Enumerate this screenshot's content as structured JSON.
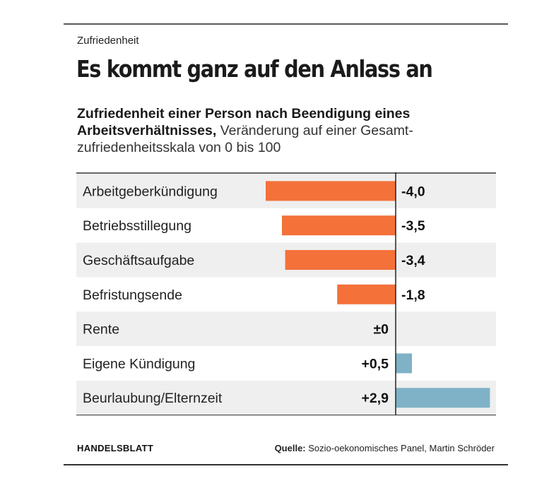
{
  "kicker": "Zufriedenheit",
  "headline": "Es kommt ganz auf den Anlass an",
  "subtitle": {
    "bold": "Zufriedenheit einer Person nach Beendigung eines Arbeitsverhältnisses,",
    "rest": " Veränderung auf einer Gesamt-zufriedenheitsskala von 0 bis 100"
  },
  "footer": {
    "brand": "HANDELSBLATT",
    "source_label": "Quelle:",
    "source_text": " Sozio-oekonomisches Panel, Martin Schröder"
  },
  "colors": {
    "negative": "#f4713a",
    "positive": "#7fb2c6",
    "row_shade": "#efefef",
    "axis": "#222222"
  },
  "chart_data": {
    "type": "bar",
    "orientation": "horizontal",
    "categories": [
      "Arbeitgeberkündigung",
      "Betriebsstillegung",
      "Geschäftsaufgabe",
      "Befristungsende",
      "Rente",
      "Eigene Kündigung",
      "Beurlaubung/Elternzeit"
    ],
    "values": [
      -4.0,
      -3.5,
      -3.4,
      -1.8,
      0,
      0.5,
      2.9
    ],
    "labels": [
      "-4,0",
      "-3,5",
      "-3,4",
      "-1,8",
      "±0",
      "+0,5",
      "+2,9"
    ],
    "xlim": [
      -4.0,
      2.9
    ],
    "grid": false,
    "legend": "none"
  }
}
